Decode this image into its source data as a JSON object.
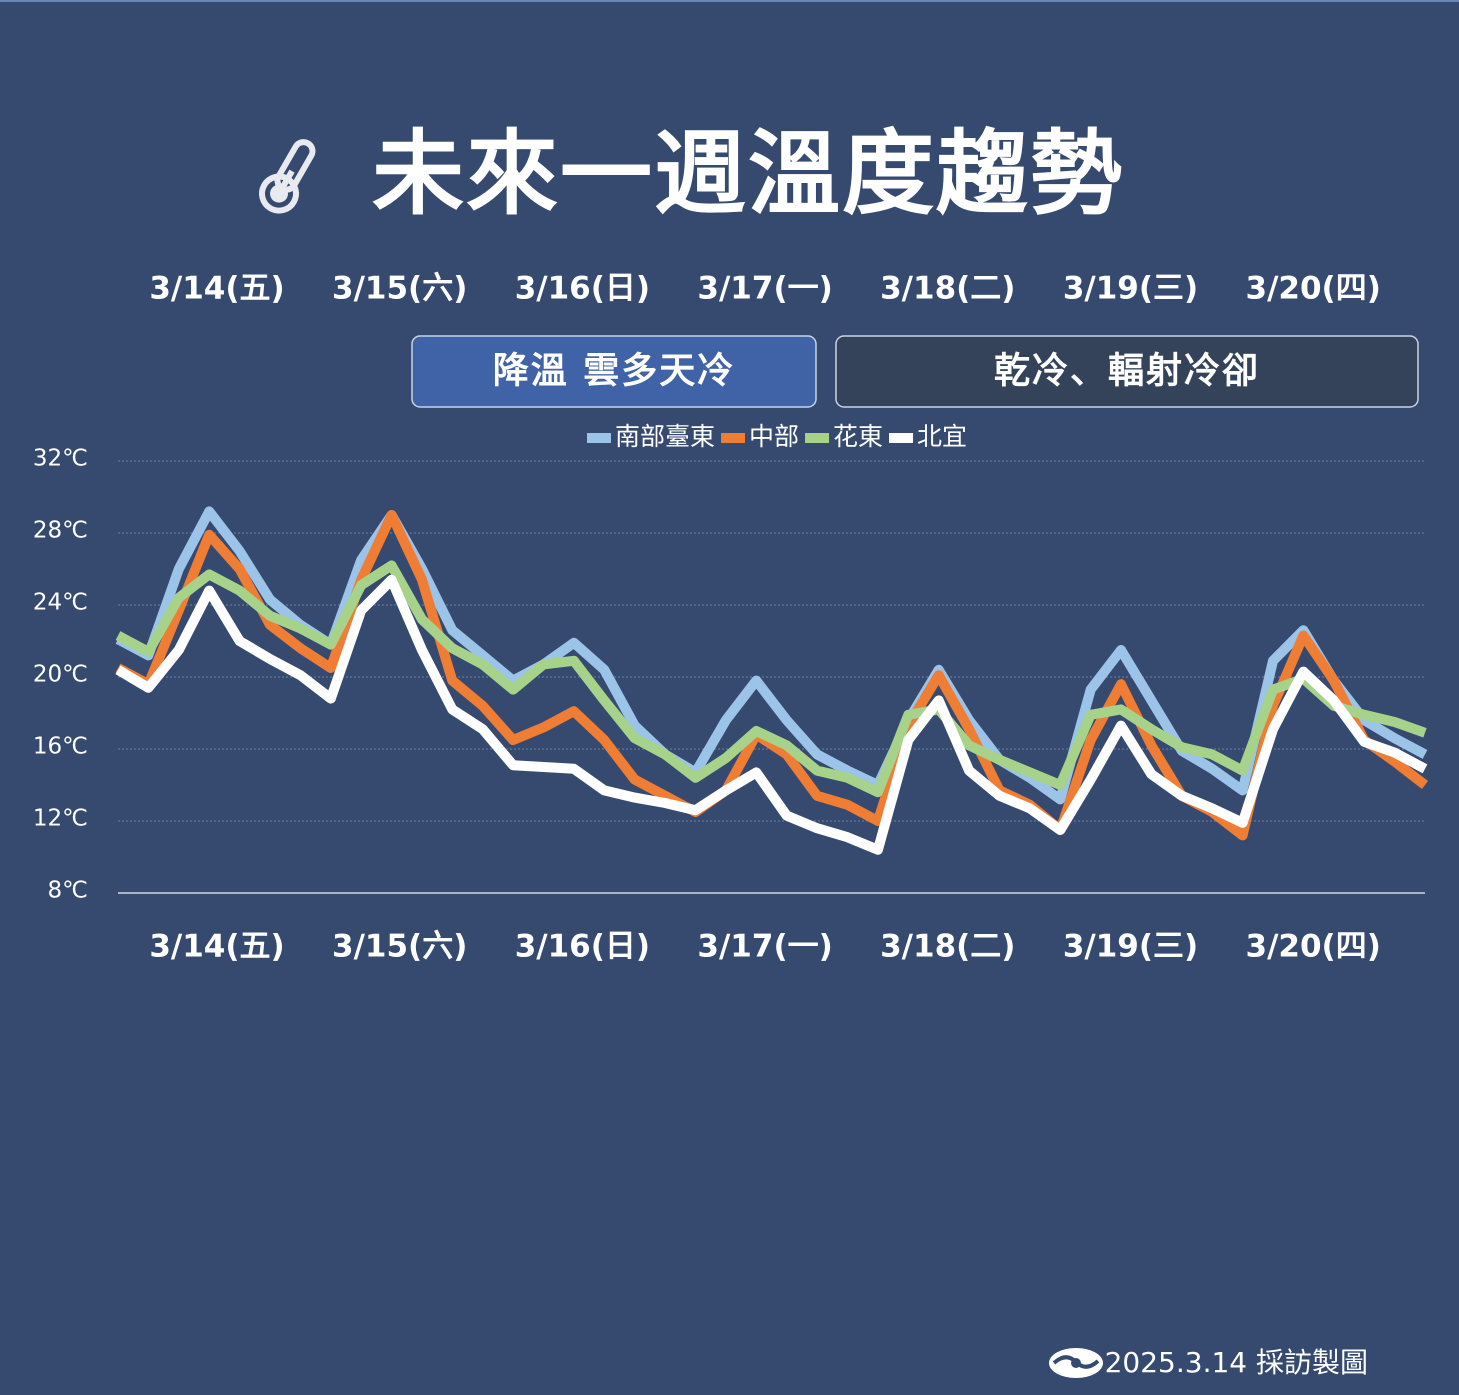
{
  "chart_data": {
    "type": "line",
    "title": "未來一週溫度趨勢",
    "days": [
      "3/14(五)",
      "3/15(六)",
      "3/16(日)",
      "3/17(一)",
      "3/18(二)",
      "3/19(三)",
      "3/20(四)"
    ],
    "day_colors": [
      "#ffffff",
      "#ffffff",
      "#f6c5d5",
      "#f6c5d5",
      "#ffffff",
      "#ffffff",
      "#ffffff"
    ],
    "banners": [
      {
        "text": "降溫 雲多天冷",
        "color": "#3f63a6"
      },
      {
        "text": "乾冷、輻射冷卻",
        "color": "#34435a"
      }
    ],
    "categories": [
      null,
      null,
      null,
      null,
      null,
      null,
      null,
      null,
      null,
      null,
      null,
      null,
      null,
      null,
      null,
      null,
      null,
      null,
      null,
      null,
      null,
      null,
      null,
      null,
      null,
      null,
      null,
      null,
      null,
      null,
      null,
      null,
      null,
      null,
      null,
      null,
      null,
      null,
      null,
      null,
      null,
      null,
      null,
      null
    ],
    "series": [
      {
        "name": "南部臺東",
        "color": "#9cc3e8",
        "values": [
          22.1,
          21.2,
          26,
          29.2,
          27,
          24.3,
          22.9,
          21.8,
          26.5,
          29,
          26,
          22.6,
          21.2,
          19.8,
          20.7,
          21.9,
          20.4,
          17.3,
          15.7,
          14.7,
          17.6,
          19.8,
          17.6,
          15.7,
          14.8,
          14,
          17.6,
          20.4,
          17.6,
          15.4,
          14.4,
          13.2,
          19.3,
          21.5,
          18.7,
          15.9,
          14.9,
          13.7,
          20.9,
          22.6,
          19.8,
          17.6,
          16.6,
          15.7
        ]
      },
      {
        "name": "中部",
        "color": "#ef7d33",
        "values": [
          20.5,
          19.6,
          23.7,
          27.9,
          26,
          22.9,
          21.6,
          20.5,
          25.4,
          29,
          25.4,
          19.8,
          18.4,
          16.5,
          17.2,
          18.1,
          16.5,
          14.3,
          13.4,
          12.5,
          13.7,
          16.8,
          15.7,
          13.4,
          12.9,
          12,
          17.3,
          20.1,
          17.1,
          13.7,
          12.9,
          11.5,
          16.5,
          19.6,
          16.2,
          13.4,
          12.5,
          11.2,
          18.4,
          22.3,
          19.8,
          16.5,
          15.3,
          14
        ]
      },
      {
        "name": "花東",
        "color": "#a6d28a",
        "values": [
          22.3,
          21.4,
          24.4,
          25.7,
          24.8,
          23.4,
          22.7,
          21.8,
          25.1,
          26.2,
          23.2,
          21.6,
          20.7,
          19.3,
          20.7,
          20.9,
          18.7,
          16.6,
          15.7,
          14.4,
          15.5,
          17,
          16.2,
          14.8,
          14.4,
          13.6,
          17.9,
          18.2,
          16.2,
          15.4,
          14.7,
          14,
          17.9,
          18.2,
          17.1,
          16.1,
          15.7,
          14.8,
          19.3,
          19.9,
          18.4,
          17.9,
          17.5,
          16.9
        ]
      },
      {
        "name": "北宜",
        "color": "#ffffff",
        "values": [
          20.4,
          19.4,
          21.5,
          24.8,
          22,
          21,
          20.1,
          18.8,
          23.7,
          25.4,
          21.5,
          18.2,
          17.1,
          15.1,
          15,
          14.9,
          13.7,
          13.3,
          13,
          12.6,
          13.7,
          14.7,
          12.3,
          11.6,
          11.1,
          10.4,
          16.5,
          18.7,
          14.8,
          13.4,
          12.7,
          11.5,
          14.3,
          17.3,
          14.6,
          13.4,
          12.7,
          11.9,
          17.1,
          20.3,
          18.7,
          16.4,
          15.8,
          14.9
        ]
      }
    ],
    "ylim": [
      8,
      32
    ],
    "yticks": [
      {
        "value": 8,
        "label": "8℃"
      },
      {
        "value": 12,
        "label": "12℃"
      },
      {
        "value": 16,
        "label": "16℃"
      },
      {
        "value": 20,
        "label": "20℃"
      },
      {
        "value": 24,
        "label": "24℃"
      },
      {
        "value": 28,
        "label": "28℃"
      },
      {
        "value": 32,
        "label": "32℃"
      }
    ],
    "grid": true,
    "footer": "2025.3.14 採訪製圖"
  }
}
